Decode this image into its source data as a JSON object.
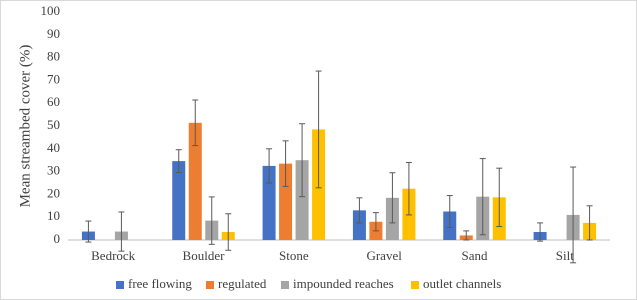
{
  "chart_data": {
    "type": "bar",
    "y_label": "Mean streambed cover (%)",
    "categories": [
      "Bedrock",
      "Boulder",
      "Stone",
      "Gravel",
      "Sand",
      "Silt"
    ],
    "series": [
      {
        "name": "free flowing",
        "color": "#4472c4",
        "values": [
          3.7,
          34.6,
          32.5,
          13,
          12.5,
          3.5
        ],
        "errors": [
          4.6,
          5,
          7.5,
          5.5,
          7,
          4
        ]
      },
      {
        "name": "regulated",
        "color": "#ed7d31",
        "values": [
          0,
          51.4,
          33.5,
          8,
          2,
          0
        ],
        "errors": [
          null,
          10,
          10,
          4,
          2,
          null
        ]
      },
      {
        "name": "impounded reaches",
        "color": "#a5a5a5",
        "values": [
          3.7,
          8.5,
          35,
          18.5,
          19,
          11
        ],
        "errors": [
          8.6,
          10.4,
          16,
          11,
          16.7,
          21
        ]
      },
      {
        "name": "outlet channels",
        "color": "#ffc000",
        "values": [
          0,
          3.5,
          48.5,
          22.5,
          18.7,
          7.5
        ],
        "errors": [
          null,
          8,
          25.6,
          11.5,
          12.8,
          7.5
        ]
      }
    ],
    "ylim": [
      0,
      100
    ],
    "yticks": [
      0,
      10,
      20,
      30,
      40,
      50,
      60,
      70,
      80,
      90,
      100
    ],
    "error_color": "#595959",
    "legend": "bottom"
  }
}
